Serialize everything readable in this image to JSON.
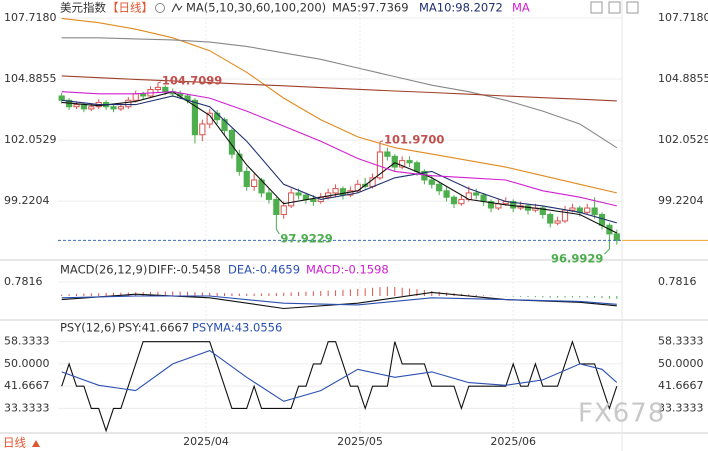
{
  "header": {
    "symbol": "美元指数",
    "period": "【日线】",
    "indicator": "MA(5,10,30,60,100,200)",
    "legend": [
      "MA5:97.7369",
      "MA10:98.2072",
      "MA"
    ]
  },
  "footer": {
    "period": "日线"
  },
  "watermark": "FX678",
  "chart_data": [
    {
      "type": "candlestick",
      "up_color": "#d9534f",
      "down_color": "#4cae4c",
      "xlim": [
        -0.5,
        75.7
      ],
      "ylim": [
        96.58,
        108.09
      ],
      "yticks": [
        {
          "value": 107.718,
          "label": "107.7180"
        },
        104.8855,
        102.0529,
        99.2204
      ],
      "xticks": [
        {
          "value": 19.5,
          "label": "2025/04"
        },
        {
          "value": 40.3,
          "label": "2025/05"
        },
        {
          "value": 61,
          "label": "2025/06"
        }
      ],
      "candles": [
        [
          104.1,
          104.25,
          103.75,
          103.9
        ],
        [
          103.9,
          104.0,
          103.45,
          103.6
        ],
        [
          103.6,
          103.85,
          103.5,
          103.7
        ],
        [
          103.7,
          103.8,
          103.35,
          103.5
        ],
        [
          103.5,
          103.75,
          103.4,
          103.6
        ],
        [
          103.6,
          103.95,
          103.5,
          103.8
        ],
        [
          103.8,
          103.9,
          103.45,
          103.6
        ],
        [
          103.6,
          103.7,
          103.35,
          103.5
        ],
        [
          103.5,
          103.75,
          103.4,
          103.6
        ],
        [
          103.6,
          104.05,
          103.5,
          103.9
        ],
        [
          103.9,
          104.35,
          103.8,
          104.2
        ],
        [
          104.2,
          104.3,
          103.95,
          104.1
        ],
        [
          104.1,
          104.55,
          104.0,
          104.4
        ],
        [
          104.4,
          104.7099,
          104.25,
          104.5
        ],
        [
          104.5,
          104.6,
          104.15,
          104.3
        ],
        [
          104.3,
          104.45,
          104.05,
          104.2
        ],
        [
          104.2,
          104.35,
          103.95,
          104.1
        ],
        [
          104.1,
          104.2,
          103.75,
          103.9
        ],
        [
          103.9,
          104.0,
          101.9,
          102.3
        ],
        [
          102.3,
          103.0,
          102.0,
          102.8
        ],
        [
          102.8,
          103.5,
          102.6,
          103.3
        ],
        [
          103.3,
          103.45,
          102.8,
          103.0
        ],
        [
          103.0,
          103.1,
          102.3,
          102.5
        ],
        [
          102.5,
          102.6,
          101.2,
          101.4
        ],
        [
          101.4,
          101.6,
          100.4,
          100.6
        ],
        [
          100.6,
          100.8,
          99.7,
          99.9
        ],
        [
          99.9,
          100.5,
          99.7,
          100.2
        ],
        [
          100.2,
          100.3,
          99.4,
          99.6
        ],
        [
          99.6,
          99.8,
          99.1,
          99.3
        ],
        [
          99.3,
          99.4,
          97.9229,
          98.6
        ],
        [
          98.6,
          99.2,
          98.4,
          99.0
        ],
        [
          99.0,
          99.8,
          98.9,
          99.6
        ],
        [
          99.6,
          99.8,
          99.3,
          99.5
        ],
        [
          99.5,
          99.6,
          99.1,
          99.3
        ],
        [
          99.3,
          99.5,
          99.0,
          99.2
        ],
        [
          99.2,
          99.6,
          99.1,
          99.4
        ],
        [
          99.4,
          99.8,
          99.3,
          99.6
        ],
        [
          99.6,
          100.0,
          99.4,
          99.8
        ],
        [
          99.8,
          99.9,
          99.3,
          99.5
        ],
        [
          99.5,
          99.9,
          99.4,
          99.7
        ],
        [
          99.7,
          100.2,
          99.6,
          100.0
        ],
        [
          100.0,
          100.3,
          99.8,
          99.9
        ],
        [
          99.9,
          100.5,
          99.8,
          100.3
        ],
        [
          100.3,
          101.97,
          100.2,
          101.5
        ],
        [
          101.5,
          101.7,
          101.1,
          101.3
        ],
        [
          101.3,
          101.4,
          100.6,
          100.8
        ],
        [
          100.8,
          101.3,
          100.7,
          101.1
        ],
        [
          101.1,
          101.3,
          100.8,
          101.0
        ],
        [
          101.0,
          101.1,
          100.4,
          100.6
        ],
        [
          100.6,
          100.7,
          100.0,
          100.2
        ],
        [
          100.2,
          100.4,
          99.8,
          100.0
        ],
        [
          100.0,
          100.1,
          99.5,
          99.7
        ],
        [
          99.7,
          99.9,
          99.2,
          99.4
        ],
        [
          99.4,
          99.5,
          98.9,
          99.1
        ],
        [
          99.1,
          99.5,
          99.0,
          99.3
        ],
        [
          99.3,
          99.9,
          99.2,
          99.6
        ],
        [
          99.6,
          99.8,
          99.3,
          99.5
        ],
        [
          99.5,
          99.6,
          99.0,
          99.2
        ],
        [
          99.2,
          99.3,
          98.7,
          98.9
        ],
        [
          98.9,
          99.3,
          98.8,
          99.1
        ],
        [
          99.1,
          99.4,
          99.0,
          99.2
        ],
        [
          99.2,
          99.3,
          98.7,
          98.9
        ],
        [
          98.9,
          99.2,
          98.8,
          99.0
        ],
        [
          99.0,
          99.1,
          98.6,
          98.8
        ],
        [
          98.8,
          99.1,
          98.7,
          98.9
        ],
        [
          98.9,
          99.0,
          98.4,
          98.6
        ],
        [
          98.6,
          98.7,
          98.0,
          98.2
        ],
        [
          98.2,
          98.5,
          98.1,
          98.3
        ],
        [
          98.3,
          99.0,
          98.2,
          98.8
        ],
        [
          98.8,
          99.1,
          98.7,
          98.9
        ],
        [
          98.9,
          99.0,
          98.5,
          98.7
        ],
        [
          98.7,
          99.1,
          98.6,
          98.9
        ],
        [
          98.9,
          99.4,
          98.4,
          98.6
        ],
        [
          98.6,
          98.7,
          97.9,
          98.1
        ],
        [
          98.1,
          98.2,
          96.9929,
          97.7
        ],
        [
          97.7,
          97.9,
          97.2,
          97.4
        ]
      ],
      "lines": [
        {
          "color": "#111111",
          "x": [
            0,
            5,
            10,
            15,
            20,
            25,
            30,
            35,
            40,
            45,
            50,
            55,
            60,
            65,
            70,
            75
          ],
          "values": [
            103.8,
            103.65,
            103.85,
            104.3,
            103.2,
            100.9,
            99.1,
            99.4,
            99.7,
            101.0,
            100.3,
            99.3,
            99.05,
            98.85,
            98.6,
            97.74
          ]
        },
        {
          "color": "#1f2f6e",
          "x": [
            0,
            5,
            10,
            15,
            20,
            25,
            30,
            35,
            40,
            45,
            50,
            55,
            60,
            65,
            70,
            75
          ],
          "values": [
            103.9,
            103.7,
            103.7,
            104.1,
            103.6,
            102.0,
            100.0,
            99.3,
            99.6,
            100.3,
            100.6,
            99.8,
            99.2,
            99.0,
            98.7,
            98.21
          ]
        },
        {
          "color": "#d020d0",
          "x": [
            0,
            5,
            10,
            15,
            20,
            25,
            30,
            35,
            40,
            45,
            50,
            55,
            60,
            65,
            70,
            75
          ],
          "values": [
            104.3,
            104.2,
            104.2,
            104.3,
            104.0,
            103.4,
            102.7,
            102.0,
            101.2,
            100.6,
            100.4,
            100.3,
            100.2,
            99.7,
            99.4,
            99.0
          ]
        },
        {
          "color": "#e08a1e",
          "x": [
            0,
            5,
            10,
            15,
            20,
            25,
            30,
            35,
            40,
            45,
            50,
            55,
            60,
            65,
            70,
            75
          ],
          "values": [
            107.7,
            107.5,
            107.2,
            106.8,
            106.2,
            105.2,
            104.0,
            103.0,
            102.2,
            101.7,
            101.4,
            101.1,
            100.8,
            100.4,
            100.0,
            99.6
          ]
        },
        {
          "color": "#888888",
          "x": [
            0,
            5,
            10,
            15,
            20,
            25,
            30,
            35,
            40,
            45,
            50,
            55,
            60,
            65,
            70,
            75
          ],
          "values": [
            106.8,
            106.8,
            106.75,
            106.7,
            106.6,
            106.4,
            106.1,
            105.8,
            105.4,
            105.0,
            104.6,
            104.3,
            103.9,
            103.4,
            102.8,
            101.7
          ]
        },
        {
          "color": "#a0402a",
          "x": [
            0,
            5,
            10,
            15,
            20,
            25,
            30,
            35,
            40,
            45,
            50,
            55,
            60,
            65,
            70,
            75
          ],
          "values": [
            105.03,
            104.95,
            104.87,
            104.8,
            104.72,
            104.64,
            104.57,
            104.49,
            104.41,
            104.33,
            104.26,
            104.18,
            104.1,
            104.02,
            103.95,
            103.87
          ]
        }
      ],
      "extreme_labels": {
        "values": [
          104.7099,
          101.97,
          97.9229,
          96.9929
        ],
        "value_labels": [
          "104.7099",
          "101.9700",
          "97.9229",
          "96.9929"
        ]
      }
    },
    {
      "type": "macd",
      "title": "MACD(26,12,9)",
      "legend": [
        "DIFF:-0.5458",
        "DEA:-0.4659",
        "MACD:-0.1598"
      ],
      "xlim": [
        -0.5,
        75.7
      ],
      "ylim": [
        -1.23,
        1.9
      ],
      "yticks": [
        0.7816
      ],
      "up_color": "#d9534f",
      "down_color": "#4cae4c",
      "histogram": [
        0.08,
        0.1,
        0.12,
        0.14,
        0.15,
        0.16,
        0.17,
        0.18,
        0.19,
        0.2,
        0.21,
        0.22,
        0.23,
        0.24,
        0.25,
        0.25,
        0.24,
        0.23,
        0.22,
        0.2,
        0.18,
        0.17,
        0.16,
        0.15,
        0.14,
        0.13,
        0.13,
        0.14,
        0.15,
        0.16,
        0.18,
        0.2,
        0.22,
        0.24,
        0.26,
        0.28,
        0.3,
        0.32,
        0.35,
        0.38,
        0.4,
        0.43,
        0.46,
        0.5,
        0.52,
        0.5,
        0.46,
        0.42,
        0.38,
        0.33,
        0.28,
        0.24,
        0.2,
        0.16,
        0.12,
        0.09,
        0.06,
        0.04,
        0.02,
        0.01,
        -0.02,
        -0.04,
        -0.05,
        -0.06,
        -0.07,
        -0.08,
        -0.1,
        -0.1,
        -0.09,
        -0.08,
        -0.08,
        -0.09,
        -0.1,
        -0.12,
        -0.14,
        -0.1598
      ],
      "lines": [
        {
          "color": "#111111",
          "x": [
            0,
            10,
            20,
            30,
            40,
            50,
            60,
            70,
            75
          ],
          "values": [
            -0.2,
            0.1,
            -0.1,
            -0.7,
            -0.4,
            0.2,
            -0.2,
            -0.35,
            -0.5458
          ]
        },
        {
          "color": "#2a4fb0",
          "x": [
            0,
            10,
            20,
            30,
            40,
            50,
            60,
            70,
            75
          ],
          "values": [
            -0.1,
            0.0,
            0.0,
            -0.4,
            -0.5,
            -0.1,
            -0.2,
            -0.3,
            -0.4659
          ]
        }
      ]
    },
    {
      "type": "psy",
      "title": "PSY(12,6)",
      "legend": [
        "PSY:41.6667",
        "PSYMA:43.0556"
      ],
      "xlim": [
        -0.5,
        75.7
      ],
      "ylim": [
        24.5,
        65.7
      ],
      "yticks": [
        58.3333,
        {
          "value": 50,
          "label": "50.0000"
        },
        41.6667,
        33.3333
      ],
      "lines": [
        {
          "color": "#111111",
          "values": [
            41.6667,
            50,
            41.6667,
            41.6667,
            33.3333,
            33.3333,
            25,
            33.3333,
            33.3333,
            41.6667,
            50,
            58.3333,
            58.3333,
            58.3333,
            58.3333,
            58.3333,
            58.3333,
            58.3333,
            58.3333,
            58.3333,
            58.3333,
            50,
            41.6667,
            33.3333,
            33.3333,
            33.3333,
            41.6667,
            33.3333,
            33.3333,
            33.3333,
            33.3333,
            33.3333,
            41.6667,
            41.6667,
            50,
            50,
            58.3333,
            58.3333,
            50,
            41.6667,
            41.6667,
            33.3333,
            41.6667,
            41.6667,
            41.6667,
            58.3333,
            50,
            50,
            50,
            50,
            41.6667,
            41.6667,
            41.6667,
            41.6667,
            33.3333,
            41.6667,
            41.6667,
            41.6667,
            41.6667,
            41.6667,
            41.6667,
            50,
            41.6667,
            41.6667,
            50,
            41.6667,
            41.6667,
            41.6667,
            50,
            58.3333,
            50,
            50,
            50,
            41.6667,
            33.3333,
            41.6667
          ]
        },
        {
          "color": "#2a4fb0",
          "x": [
            0,
            5,
            10,
            15,
            20,
            25,
            30,
            35,
            40,
            45,
            50,
            55,
            60,
            65,
            70,
            73,
            75
          ],
          "values": [
            47,
            42,
            40,
            50,
            55,
            45,
            36,
            40,
            48,
            45,
            47,
            43,
            42,
            44,
            50,
            48,
            43.0556
          ]
        }
      ]
    }
  ]
}
